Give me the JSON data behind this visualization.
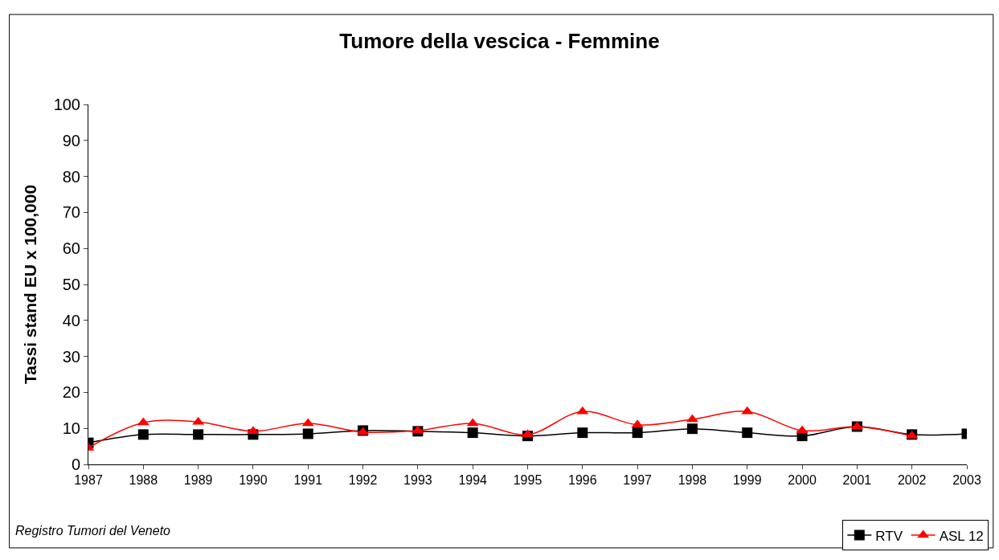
{
  "chart_data": {
    "type": "line",
    "title": "Tumore della vescica - Femmine",
    "ylabel": "Tassi stand EU x 100,000",
    "categories": [
      "1987",
      "1988",
      "1989",
      "1990",
      "1991",
      "1992",
      "1993",
      "1994",
      "1995",
      "1996",
      "1997",
      "1998",
      "1999",
      "2000",
      "2001",
      "2002",
      "2003"
    ],
    "series": [
      {
        "name": "RTV",
        "color": "#000000",
        "marker": "square",
        "values": [
          6,
          8.3,
          8.3,
          8.3,
          8.5,
          9.4,
          9.2,
          8.8,
          7.9,
          8.8,
          8.8,
          9.9,
          8.8,
          7.9,
          10.5,
          8.3,
          8.5
        ]
      },
      {
        "name": "ASL 12",
        "color": "#ff0000",
        "marker": "triangle",
        "values": [
          4.6,
          11.6,
          11.8,
          9.2,
          11.4,
          9,
          9.4,
          11.4,
          8.3,
          14.7,
          11,
          12.5,
          14.7,
          9.4,
          10.5,
          7.9,
          null
        ]
      }
    ],
    "ylim": [
      0,
      100
    ],
    "yticks": [
      0,
      10,
      20,
      30,
      40,
      50,
      60,
      70,
      80,
      90,
      100
    ],
    "legend": "bottom right",
    "annotations": [
      "Registro Tumori del Veneto"
    ]
  }
}
